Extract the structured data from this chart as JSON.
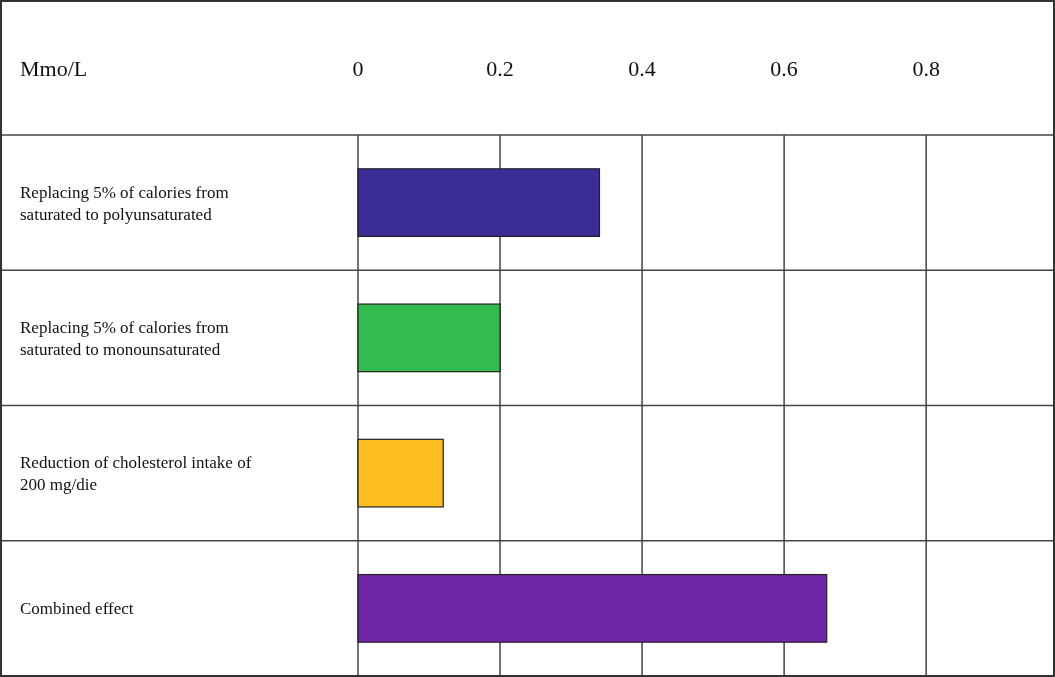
{
  "chart_data": {
    "type": "bar",
    "orientation": "horizontal",
    "xlabel": "Mmo/L",
    "categories": [
      "Replacing 5% of calories from saturated to polyunsaturated",
      "Replacing 5% of calories from saturated to monounsaturated",
      "Reduction of cholesterol intake of 200 mg/die",
      "Combined effect"
    ],
    "values": [
      0.34,
      0.2,
      0.12,
      0.66
    ],
    "colors": [
      "#3a2d96",
      "#33bb4f",
      "#fbbd1f",
      "#7125a8"
    ],
    "xlim": [
      0,
      0.98
    ],
    "xticks": [
      0,
      0.2,
      0.4,
      0.6,
      0.8
    ],
    "grid": true
  }
}
